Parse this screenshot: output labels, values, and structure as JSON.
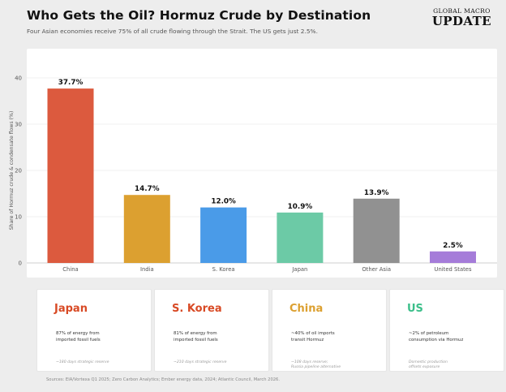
{
  "header": {
    "title": "Who Gets the Oil? Hormuz Crude by Destination",
    "subtitle": "Four Asian economies receive 75% of all crude flowing through the Strait. The US gets just 2.5%.",
    "brand_top": "GLOBAL MACRO",
    "brand_main": "UPDATE"
  },
  "chart_data": {
    "type": "bar",
    "categories": [
      "China",
      "India",
      "S. Korea",
      "Japan",
      "Other Asia",
      "United States"
    ],
    "values": [
      37.7,
      14.7,
      12.0,
      10.9,
      13.9,
      2.5
    ],
    "value_labels": [
      "37.7%",
      "14.7%",
      "12.0%",
      "10.9%",
      "13.9%",
      "2.5%"
    ],
    "colors": [
      "#dc5a3e",
      "#dca030",
      "#4a9be8",
      "#6ccaa6",
      "#919191",
      "#a57cd9"
    ],
    "ylabel": "Share of Hormuz crude & condensate flows (%)",
    "xlabel": "",
    "ylim": [
      0,
      42
    ],
    "yticks": [
      "0",
      "10",
      "20",
      "30",
      "40"
    ],
    "ytick_values": [
      0,
      10,
      20,
      30,
      40
    ],
    "grid": true
  },
  "cards": [
    {
      "title": "Japan",
      "color": "#d84a25",
      "desc_lines": [
        "87% of energy from",
        "imported fossil fuels"
      ],
      "note_lines": [
        "~180 days strategic reserve"
      ]
    },
    {
      "title": "S. Korea",
      "color": "#d84a25",
      "desc_lines": [
        "81% of energy from",
        "imported fossil fuels"
      ],
      "note_lines": [
        "~210 days strategic reserve"
      ]
    },
    {
      "title": "China",
      "color": "#dca030",
      "desc_lines": [
        "~40% of oil imports",
        "transit Hormuz"
      ],
      "note_lines": [
        "~108 days reserve;",
        "Russia pipeline alternative"
      ]
    },
    {
      "title": "US",
      "color": "#3cbf8a",
      "desc_lines": [
        "~2% of petroleum",
        "consumption via Hormuz"
      ],
      "note_lines": [
        "Domestic production",
        "offsets exposure"
      ]
    }
  ],
  "footer": {
    "sources": "Sources: EIA/Vortexa Q1 2025; Zero Carbon Analytics; Ember energy data, 2024; Atlantic Council, March 2026."
  }
}
